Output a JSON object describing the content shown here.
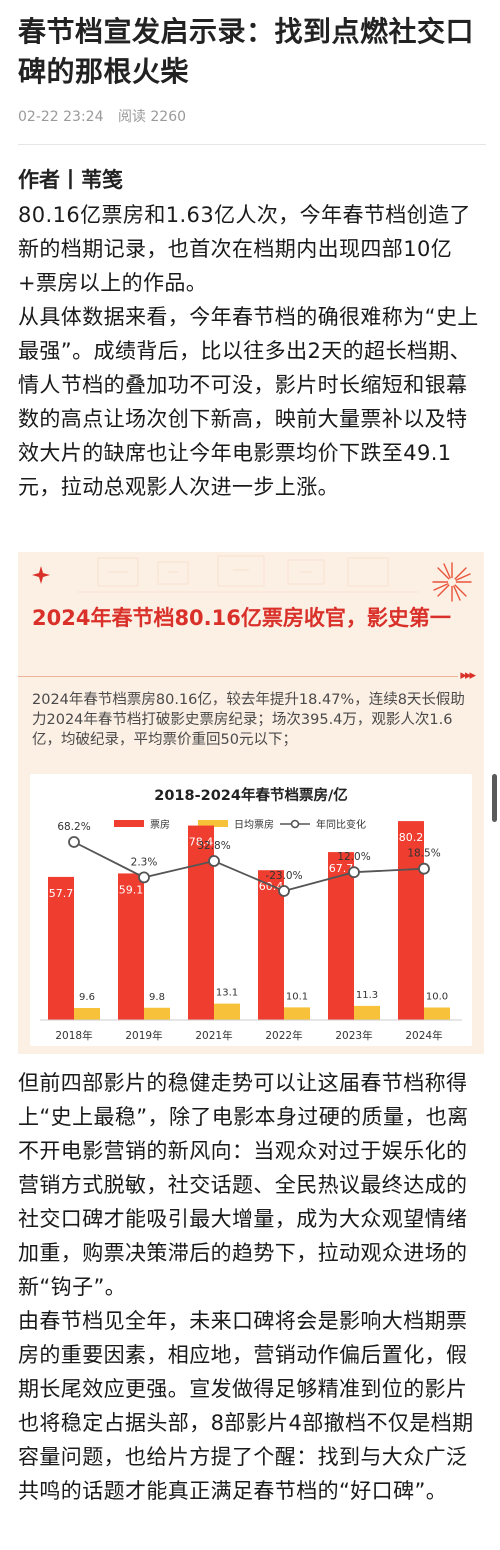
{
  "article": {
    "title": "春节档宣发启示录：找到点燃社交口碑的那根火柴",
    "date": "02-22 23:24",
    "read_label": "阅读 2260",
    "author": "作者丨苇笺",
    "paragraphs": [
      "80.16亿票房和1.63亿人次，今年春节档创造了新的档期记录，也首次在档期内出现四部10亿+票房以上的作品。",
      "从具体数据来看，今年春节档的确很难称为“史上最强”。成绩背后，比以往多出2天的超长档期、情人节档的叠加功不可没，影片时长缩短和银幕数的高点让场次创下新高，映前大量票补以及特效大片的缺席也让今年电影票均价下跌至49.1元，拉动总观影人次进一步上涨。",
      "但前四部影片的稳健走势可以让这届春节档称得上“史上最稳”，除了电影本身过硬的质量，也离不开电影营销的新风向：当观众对过于娱乐化的营销方式脱敏，社交话题、全民热议最终达成的社交口碑才能吸引最大增量，成为大众观望情绪加重，购票决策滞后的趋势下，拉动观众进场的新“钩子”。",
      "由春节档见全年，未来口碑将会是影响大档期票房的重要因素，相应地，营销动作偏后置化，假期长尾效应更强。宣发做得足够精准到位的影片也将稳定占据头部，8部影片4部撤档不仅是档期容量问题，也给片方提了个醒：找到与大众广泛共鸣的话题才能真正满足春节档的“好口碑”。"
    ]
  },
  "infographic": {
    "heading": "2024年春节档80.16亿票房收官，影史第一",
    "description": "2024年春节档票房80.16亿，较去年提升18.47%，连续8天长假助力2024年春节档打破影史票房纪录；场次395.4万，观影人次1.6亿，均破纪录，平均票价重回50元以下；",
    "arrows": "▸▸▸",
    "colors": {
      "accent": "#d9312a",
      "bar_box": "#ef3d2f",
      "bar_daily": "#f7c23a",
      "line": "#555555",
      "background": "#fcefe4"
    }
  },
  "chart_data": {
    "type": "bar",
    "title": "2018-2024年春节档票房/亿",
    "categories": [
      "2018年",
      "2019年",
      "2021年",
      "2022年",
      "2023年",
      "2024年"
    ],
    "series": [
      {
        "name": "票房",
        "type": "bar",
        "values": [
          57.7,
          59.1,
          78.4,
          60.4,
          67.7,
          80.2
        ],
        "labels": [
          "57.7",
          "59.1",
          "78.4",
          "60.4",
          "67.7",
          "80.2"
        ]
      },
      {
        "name": "日均票房",
        "type": "bar",
        "values": [
          9.6,
          9.8,
          13.1,
          10.1,
          11.3,
          10.0
        ],
        "labels": [
          "9.6",
          "9.8",
          "13.1",
          "10.1",
          "11.3",
          "10.0"
        ]
      },
      {
        "name": "年同比变化",
        "type": "line",
        "values": [
          68.2,
          2.3,
          32.8,
          -23.0,
          12.0,
          18.5
        ],
        "labels": [
          "68.2%",
          "2.3%",
          "32.8%",
          "-23.0%",
          "12.0%",
          "18.5%"
        ]
      }
    ],
    "legend_position": "top",
    "grid": false
  }
}
